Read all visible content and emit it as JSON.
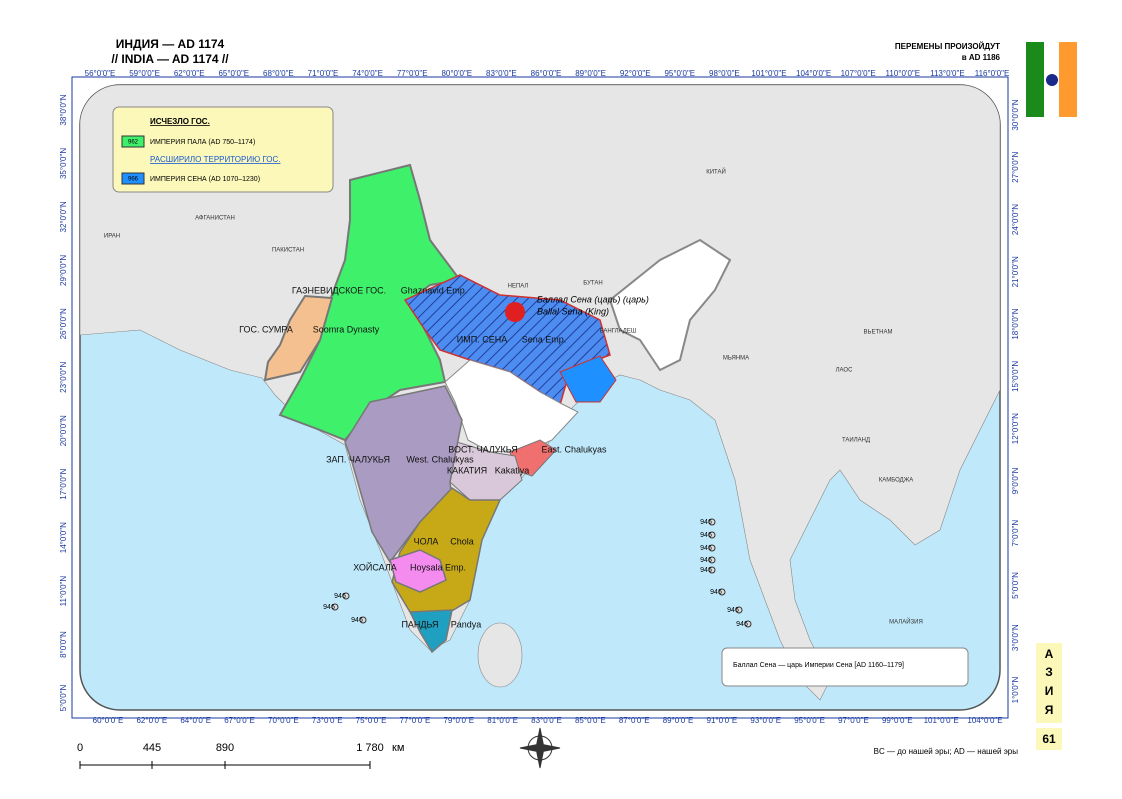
{
  "header": {
    "title": "ИНДИЯ — AD 1174",
    "subtitle": "// INDIA — AD 1174 //",
    "changes": "ПЕРЕМЕНЫ ПРОИЗОЙДУТ",
    "changes_date": "в AD 1186"
  },
  "axes": {
    "top": [
      "56°0'0\"E",
      "59°0'0\"E",
      "62°0'0\"E",
      "65°0'0\"E",
      "68°0'0\"E",
      "71°0'0\"E",
      "74°0'0\"E",
      "77°0'0\"E",
      "80°0'0\"E",
      "83°0'0\"E",
      "86°0'0\"E",
      "89°0'0\"E",
      "92°0'0\"E",
      "95°0'0\"E",
      "98°0'0\"E",
      "101°0'0\"E",
      "104°0'0\"E",
      "107°0'0\"E",
      "110°0'0\"E",
      "113°0'0\"E",
      "116°0'0\"E"
    ],
    "bottom": [
      "60°0'0\"E",
      "62°0'0\"E",
      "64°0'0\"E",
      "67°0'0\"E",
      "70°0'0\"E",
      "73°0'0\"E",
      "75°0'0\"E",
      "77°0'0\"E",
      "79°0'0\"E",
      "81°0'0\"E",
      "83°0'0\"E",
      "85°0'0\"E",
      "87°0'0\"E",
      "89°0'0\"E",
      "91°0'0\"E",
      "93°0'0\"E",
      "95°0'0\"E",
      "97°0'0\"E",
      "99°0'0\"E",
      "101°0'0\"E",
      "104°0'0\"E"
    ],
    "left": [
      "38°0'0\"N",
      "35°0'0\"N",
      "32°0'0\"N",
      "29°0'0\"N",
      "26°0'0\"N",
      "23°0'0\"N",
      "20°0'0\"N",
      "17°0'0\"N",
      "14°0'0\"N",
      "11°0'0\"N",
      "8°0'0\"N",
      "5°0'0\"N"
    ],
    "right": [
      "30°0'0\"N",
      "27°0'0\"N",
      "24°0'0\"N",
      "21°0'0\"N",
      "18°0'0\"N",
      "15°0'0\"N",
      "12°0'0\"N",
      "9°0'0\"N",
      "7°0'0\"N",
      "5°0'0\"N",
      "3°0'0\"N",
      "1°0'0\"N"
    ]
  },
  "legend": {
    "gone_title": "ИСЧЕЗЛО ГОС.",
    "gone_code": "962",
    "gone_name": "ИМПЕРИЯ ПАЛА (AD 750–1174)",
    "expanded_title": "РАСШИРИЛО ТЕРРИТОРИЮ ГОС.",
    "expanded_code": "966",
    "expanded_name": "ИМПЕРИЯ СЕНА (AD 1070–1230)"
  },
  "countries": [
    "ИРАН",
    "АФГАНИСТАН",
    "ПАКИСТАН",
    "КИТАЙ",
    "НЕПАЛ",
    "БУТАН",
    "БАНГЛАДЕШ",
    "МЬЯНМА",
    "ВЬЕТНАМ",
    "ЛАОС",
    "ТАИЛАНД",
    "КАМБОДЖА",
    "МАЛАЙЗИЯ"
  ],
  "states": [
    {
      "ru": "ГАЗНЕВИДСКОЕ ГОС.",
      "en": "Ghaznavid Emp."
    },
    {
      "ru": "ГОС. СУМРА",
      "en": "Soomra Dynasty"
    },
    {
      "ru": "ИМП. СЕНА",
      "en": "Sena Emp."
    },
    {
      "ru": "ВОСТ. ЧАЛУКЬЯ",
      "en": "East. Chalukyas"
    },
    {
      "ru": "КАКАТИЯ",
      "en": "Kakatiya"
    },
    {
      "ru": "ЗАП. ЧАЛУКЬЯ",
      "en": "West. Chalukyas"
    },
    {
      "ru": "ЧОЛА",
      "en": "Chola"
    },
    {
      "ru": "ХОЙСАЛА",
      "en": "Hoysala Emp."
    },
    {
      "ru": "ПАНДЬЯ",
      "en": "Pandya"
    }
  ],
  "ruler": {
    "ru": "Баллал Сена (царь) (царь)",
    "en": "Ballal Sena (King)"
  },
  "islands": [
    "946",
    "946",
    "946",
    "946",
    "946",
    "946",
    "946",
    "946",
    "946",
    "946",
    "946"
  ],
  "note": "Баллал Сена — царь Империи Сена [AD 1160–1179]",
  "scale": {
    "ticks": [
      "0",
      "445",
      "890",
      "1 780"
    ],
    "unit": "км"
  },
  "footer": "BC — до нашей эры; AD — нашей эры",
  "side": {
    "letters": [
      "А",
      "З",
      "И",
      "Я"
    ],
    "page": "61"
  }
}
